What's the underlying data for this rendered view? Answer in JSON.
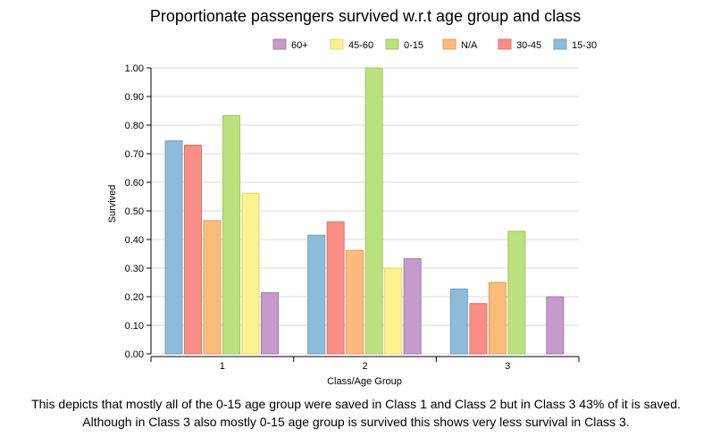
{
  "chart_data": {
    "type": "bar",
    "title": "Proportionate passengers survived w.r.t age group and class",
    "xlabel": "Class/Age Group",
    "ylabel": "Survived",
    "categories": [
      "1",
      "2",
      "3"
    ],
    "ylim": [
      0,
      1
    ],
    "yticks": [
      "0.00",
      "0.10",
      "0.20",
      "0.30",
      "0.40",
      "0.50",
      "0.60",
      "0.70",
      "0.80",
      "0.90",
      "1.00"
    ],
    "grid": true,
    "legend_position": "top-right",
    "legend_order": [
      "60+",
      "45-60",
      "0-15",
      "N/A",
      "30-45",
      "15-30"
    ],
    "series": [
      {
        "name": "15-30",
        "color": "#8fbbdb",
        "stroke": "#6f9fc4",
        "values": [
          0.745,
          0.415,
          0.227
        ]
      },
      {
        "name": "30-45",
        "color": "#fa8e86",
        "stroke": "#e07068",
        "values": [
          0.73,
          0.462,
          0.176
        ]
      },
      {
        "name": "N/A",
        "color": "#fdbb7c",
        "stroke": "#e59a5a",
        "values": [
          0.466,
          0.362,
          0.25
        ]
      },
      {
        "name": "0-15",
        "color": "#bce27f",
        "stroke": "#9ec861",
        "values": [
          0.833,
          1.0,
          0.429
        ]
      },
      {
        "name": "45-60",
        "color": "#fff28e",
        "stroke": "#e6d46a",
        "values": [
          0.562,
          0.3,
          null
        ]
      },
      {
        "name": "60+",
        "color": "#c69bcc",
        "stroke": "#a77aae",
        "values": [
          0.214,
          0.333,
          0.2
        ]
      }
    ]
  },
  "caption": {
    "line1": "This depicts that mostly all of the 0-15 age group were saved in Class 1 and Class 2 but in Class 3 43% of it is saved.",
    "line2": "Although in Class 3 also mostly 0-15 age group is survived this shows very less survival in Class 3."
  }
}
